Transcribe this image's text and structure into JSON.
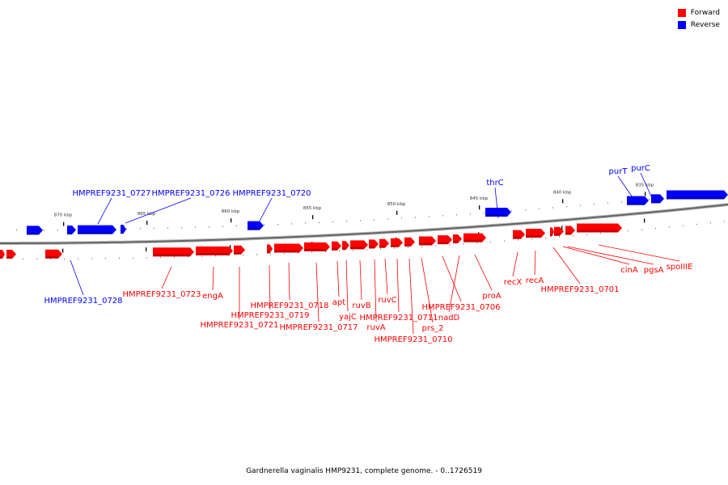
{
  "legend": {
    "forward": {
      "label": "Forward",
      "color": "#ff0000"
    },
    "reverse": {
      "label": "Reverse",
      "color": "#0000ff"
    }
  },
  "caption": "Gardnerella vaginalis HMP9231, complete genome. - 0..1726519",
  "scale_ticks": [
    "870 kbp",
    "865 kbp",
    "860 kbp",
    "855 kbp",
    "850 kbp",
    "845 kbp",
    "840 kbp",
    "835 kbp"
  ],
  "reverse_labels": [
    "HMPREF9231_0727",
    "HMPREF9231_0726",
    "HMPREF9231_0720",
    "thrC",
    "purT",
    "purC",
    "HMPREF9231_0728"
  ],
  "forward_labels": [
    "HMPREF9231_0723",
    "engA",
    "HMPREF9231_0719",
    "HMPREF9231_0721",
    "HMPREF9231_0718",
    "HMPREF9231_0717",
    "apt",
    "yajC",
    "ruvB",
    "ruvC",
    "ruvA",
    "HMPREF9231_0711",
    "HMPREF9231_0710",
    "prs_2",
    "HMPREF9231_0706",
    "nadD",
    "proA",
    "recX",
    "recA",
    "HMPREF9231_0701",
    "cinA",
    "pgsA",
    "spoIIIE"
  ]
}
